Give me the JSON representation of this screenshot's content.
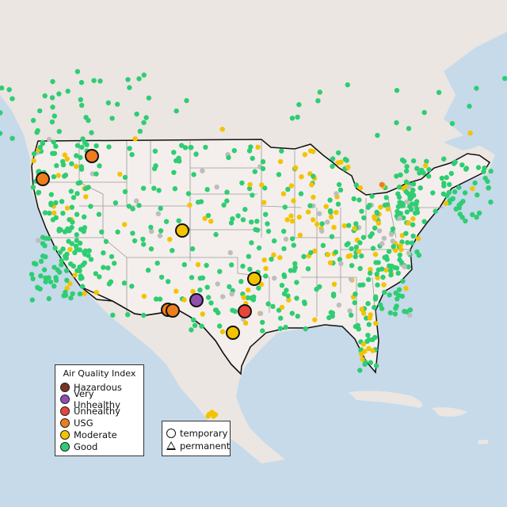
{
  "colors": {
    "water": "#c6daea",
    "land": "#f1ece8",
    "land_north": "#e9e3df",
    "state_lines": "#9a9a9a",
    "border": "#111111",
    "good": "#2fcd73",
    "moderate": "#f3c300",
    "usg": "#ee7d1e",
    "unhealthy": "#e8443a",
    "very_unhealthy": "#8e4fb0",
    "hazardous": "#7a3524",
    "no_data": "#bdbdbd"
  },
  "legend": {
    "title": "Air Quality Index",
    "items": [
      {
        "label": "Hazardous",
        "color": "#7a3524"
      },
      {
        "label": "Very Unhealthy",
        "color": "#8e4fb0"
      },
      {
        "label": "Unhealthy",
        "color": "#e8443a"
      },
      {
        "label": "USG",
        "color": "#ee7d1e"
      },
      {
        "label": "Moderate",
        "color": "#f3c300"
      },
      {
        "label": "Good",
        "color": "#2fcd73"
      }
    ]
  },
  "type_legend": {
    "temporary_label": "temporary",
    "permanent_label": "permanent"
  },
  "highlighted_sites": [
    {
      "category": "usg",
      "near": "Spokane, WA"
    },
    {
      "category": "usg",
      "near": "Portland, OR"
    },
    {
      "category": "moderate",
      "near": "Colorado"
    },
    {
      "category": "moderate",
      "near": "Oklahoma City, OK"
    },
    {
      "category": "very_unhealthy",
      "near": "Texas Panhandle"
    },
    {
      "category": "usg",
      "near": "El Paso, TX"
    },
    {
      "category": "usg",
      "near": "El Paso, TX"
    },
    {
      "category": "unhealthy",
      "near": "Dallas, TX"
    },
    {
      "category": "moderate",
      "near": "San Antonio, TX"
    }
  ]
}
